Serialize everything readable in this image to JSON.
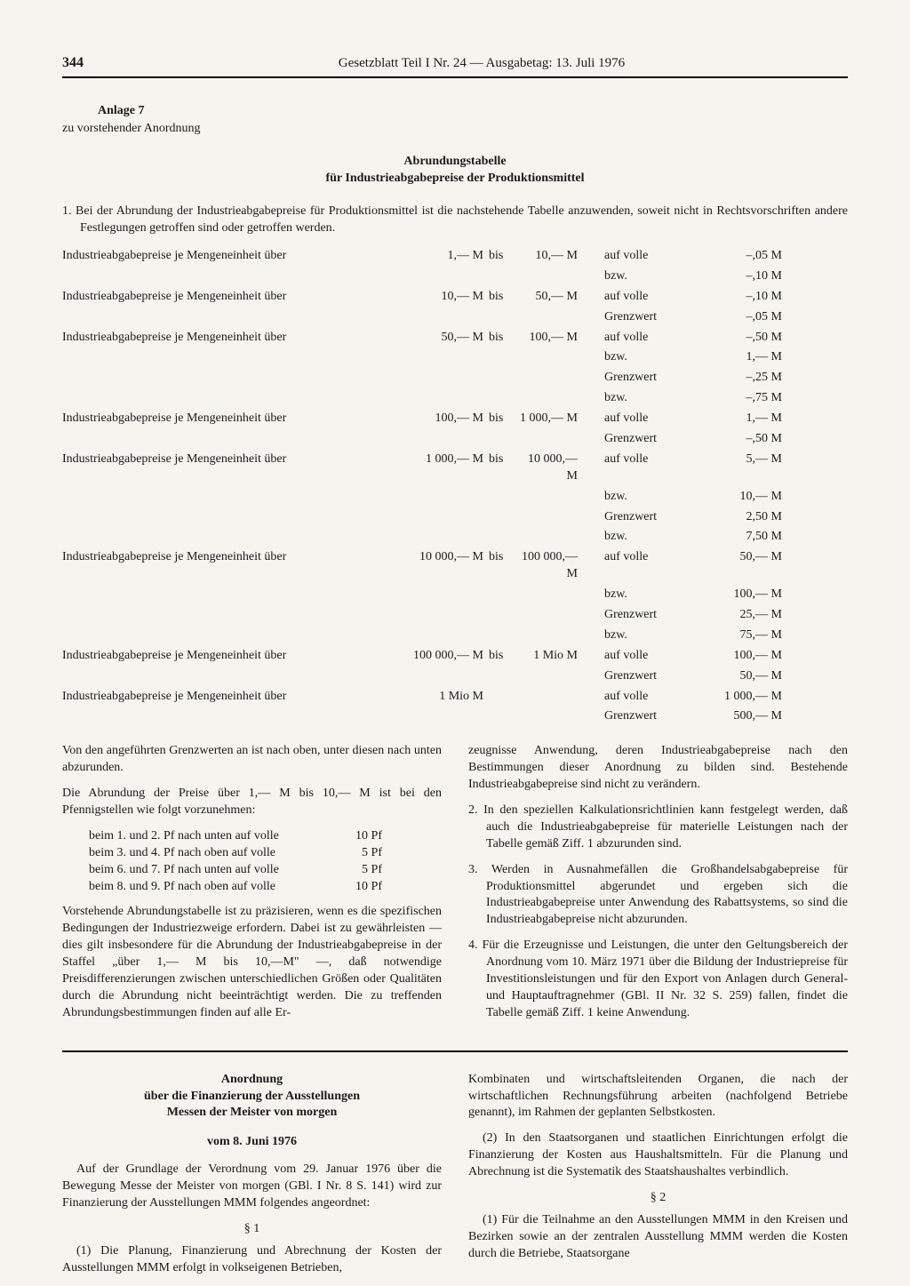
{
  "header": {
    "page": "344",
    "title": "Gesetzblatt Teil I Nr. 24 — Ausgabetag: 13. Juli 1976"
  },
  "anlage": {
    "label": "Anlage 7",
    "sub": "zu vorstehender Anordnung"
  },
  "doc": {
    "title": "Abrundungstabelle",
    "subtitle": "für Industrieabgabepreise der Produktionsmittel"
  },
  "intro": "1. Bei der Abrundung der Industrieabgabepreise für Produktionsmittel ist die nachstehende Tabelle anzuwenden, soweit nicht in Rechtsvorschriften andere Festlegungen getroffen sind oder getroffen werden.",
  "label_text": "Industrieabgabepreise je Mengeneinheit über",
  "table": [
    {
      "from": "1,— M",
      "bis": "bis",
      "to": "10,— M",
      "auf": [
        "auf volle",
        "bzw."
      ],
      "val": [
        "–,05 M",
        "–,10 M"
      ]
    },
    {
      "from": "10,— M",
      "bis": "bis",
      "to": "50,— M",
      "auf": [
        "auf volle",
        "Grenzwert"
      ],
      "val": [
        "–,10 M",
        "–,05 M"
      ]
    },
    {
      "from": "50,— M",
      "bis": "bis",
      "to": "100,— M",
      "auf": [
        "auf volle",
        "bzw.",
        "Grenzwert",
        "bzw."
      ],
      "val": [
        "–,50 M",
        "1,— M",
        "–,25 M",
        "–,75 M"
      ]
    },
    {
      "from": "100,— M",
      "bis": "bis",
      "to": "1 000,— M",
      "auf": [
        "auf volle",
        "Grenzwert"
      ],
      "val": [
        "1,— M",
        "–,50 M"
      ]
    },
    {
      "from": "1 000,— M",
      "bis": "bis",
      "to": "10 000,— M",
      "auf": [
        "auf volle",
        "bzw.",
        "Grenzwert",
        "bzw."
      ],
      "val": [
        "5,— M",
        "10,— M",
        "2,50 M",
        "7,50 M"
      ]
    },
    {
      "from": "10 000,— M",
      "bis": "bis",
      "to": "100 000,— M",
      "auf": [
        "auf volle",
        "bzw.",
        "Grenzwert",
        "bzw."
      ],
      "val": [
        "50,— M",
        "100,— M",
        "25,— M",
        "75,— M"
      ]
    },
    {
      "from": "100 000,— M",
      "bis": "bis",
      "to": "1 Mio M",
      "auf": [
        "auf volle",
        "Grenzwert"
      ],
      "val": [
        "100,— M",
        "50,— M"
      ]
    },
    {
      "from": "1 Mio M",
      "bis": "",
      "to": "",
      "auf": [
        "auf volle",
        "Grenzwert"
      ],
      "val": [
        "1 000,— M",
        "500,— M"
      ]
    }
  ],
  "leftcol": {
    "p1": "Von den angeführten Grenzwerten an ist nach oben, unter diesen nach unten abzurunden.",
    "p2": "Die Abrundung der Preise über 1,— M bis 10,— M ist bei den Pfennigstellen wie folgt vorzunehmen:",
    "pf": [
      {
        "l": "beim 1. und 2. Pf nach unten auf volle",
        "v": "10 Pf"
      },
      {
        "l": "beim 3. und 4. Pf nach oben auf volle",
        "v": "5 Pf"
      },
      {
        "l": "beim 6. und 7. Pf nach unten auf volle",
        "v": "5 Pf"
      },
      {
        "l": "beim 8. und 9. Pf nach oben auf volle",
        "v": "10 Pf"
      }
    ],
    "p3": "Vorstehende Abrundungstabelle ist zu präzisieren, wenn es die spezifischen Bedingungen der Industriezweige erfordern. Dabei ist zu gewährleisten — dies gilt insbesondere für die Abrundung der Industrieabgabepreise in der Staffel „über 1,— M bis 10,—M\" —, daß notwendige Preisdifferenzierungen zwischen unterschiedlichen Größen oder Qualitäten durch die Abrundung nicht beeinträchtigt werden. Die zu treffenden Abrundungsbestimmungen finden auf alle Er-"
  },
  "rightcol": {
    "p1": "zeugnisse Anwendung, deren Industrieabgabepreise nach den Bestimmungen dieser Anordnung zu bilden sind. Bestehende Industrieabgabepreise sind nicht zu verändern.",
    "p2": "2. In den speziellen Kalkulationsrichtlinien kann festgelegt werden, daß auch die Industrieabgabepreise für materielle Leistungen nach der Tabelle gemäß Ziff. 1 abzurunden sind.",
    "p3": "3. Werden in Ausnahmefällen die Großhandelsabgabepreise für Produktionsmittel abgerundet und ergeben sich die Industrieabgabepreise unter Anwendung des Rabattsystems, so sind die Industrieabgabepreise nicht abzurunden.",
    "p4": "4. Für die Erzeugnisse und Leistungen, die unter den Geltungsbereich der Anordnung vom 10. März 1971 über die Bildung der Industriepreise für Investitionsleistungen und für den Export von Anlagen durch General- und Hauptauftragnehmer (GBl. II Nr. 32 S. 259) fallen, findet die Tabelle gemäß Ziff. 1 keine Anwendung."
  },
  "section2": {
    "title": "Anordnung",
    "sub1": "über die Finanzierung der Ausstellungen",
    "sub2": "Messen der Meister von morgen",
    "date": "vom 8. Juni 1976",
    "left": {
      "p1": "Auf der Grundlage der Verordnung vom 29. Januar 1976 über die Bewegung Messe der Meister von morgen (GBl. I Nr. 8 S. 141) wird zur Finanzierung der Ausstellungen MMM folgendes angeordnet:",
      "s1": "§ 1",
      "p2": "(1) Die Planung, Finanzierung und Abrechnung der Kosten der Ausstellungen MMM erfolgt in volkseigenen Betrieben,"
    },
    "right": {
      "p1": "Kombinaten und wirtschaftsleitenden Organen, die nach der wirtschaftlichen Rechnungsführung arbeiten (nachfolgend Betriebe genannt), im Rahmen der geplanten Selbstkosten.",
      "p2": "(2) In den Staatsorganen und staatlichen Einrichtungen erfolgt die Finanzierung der Kosten aus Haushaltsmitteln. Für die Planung und Abrechnung ist die Systematik des Staatshaushaltes verbindlich.",
      "s2": "§ 2",
      "p3": "(1) Für die Teilnahme an den Ausstellungen MMM in den Kreisen und Bezirken sowie an der zentralen Ausstellung MMM werden die Kosten durch die Betriebe, Staatsorgane"
    }
  }
}
